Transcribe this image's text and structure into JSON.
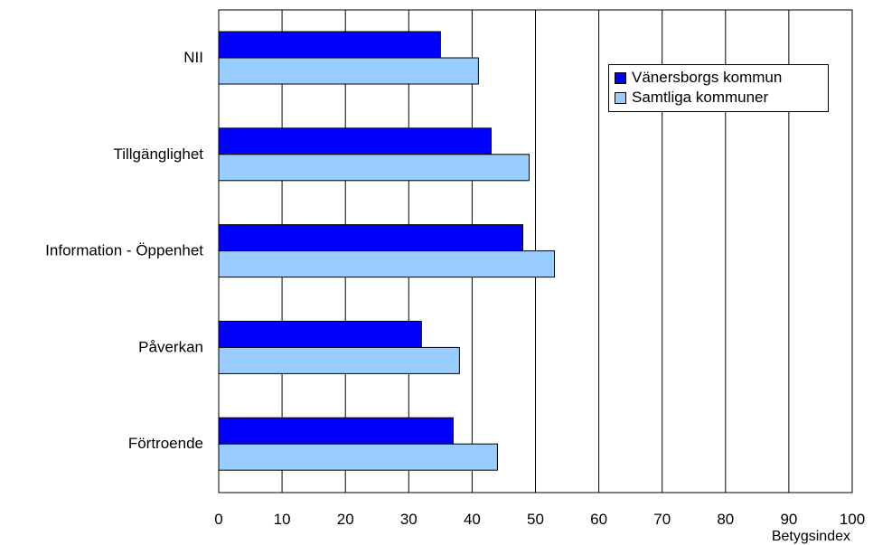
{
  "chart_data": {
    "type": "bar",
    "orientation": "horizontal",
    "categories": [
      "NII",
      "Tillgänglighet",
      "Information - Öppenhet",
      "Påverkan",
      "Förtroende"
    ],
    "series": [
      {
        "name": "Vänersborgs kommun",
        "values": [
          35,
          43,
          48,
          32,
          37
        ],
        "color": "#0000ff"
      },
      {
        "name": "Samtliga kommuner",
        "values": [
          41,
          49,
          53,
          38,
          44
        ],
        "color": "#99ccff"
      }
    ],
    "xlabel": "Betygsindex",
    "xlim": [
      0,
      100
    ],
    "xticks": [
      "0",
      "10",
      "20",
      "30",
      "40",
      "50",
      "60",
      "70",
      "80",
      "90",
      "100"
    ],
    "grid": "vertical",
    "legend_position": "top-right"
  }
}
